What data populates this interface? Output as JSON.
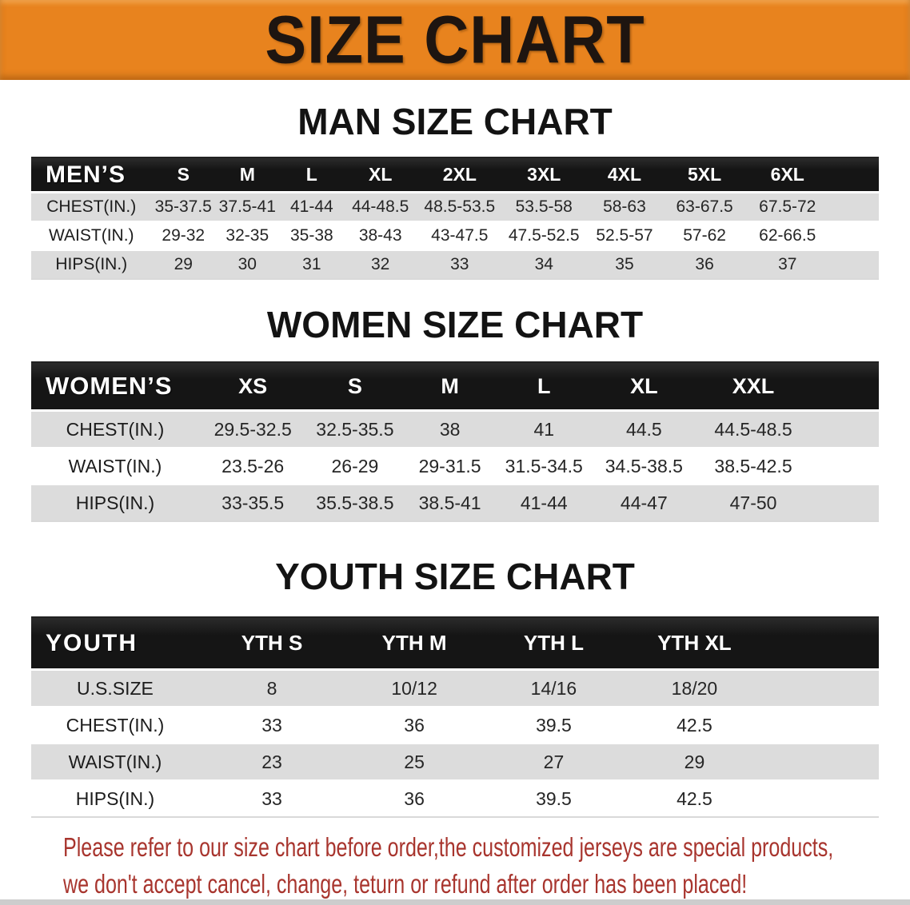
{
  "colors": {
    "banner_orange": "#e8831e",
    "band_black": "#151515",
    "row_gray": "#dcdcdc",
    "disclaimer_red": "#a8352e"
  },
  "banner": {
    "title": "SIZE CHART"
  },
  "sections": [
    {
      "heading": "MAN SIZE CHART",
      "table": {
        "label": "MEN’S",
        "columns": [
          "S",
          "M",
          "L",
          "XL",
          "2XL",
          "3XL",
          "4XL",
          "5XL",
          "6XL"
        ],
        "rows": [
          {
            "label": "CHEST(IN.)",
            "values": [
              "35-37.5",
              "37.5-41",
              "41-44",
              "44-48.5",
              "48.5-53.5",
              "53.5-58",
              "58-63",
              "63-67.5",
              "67.5-72"
            ]
          },
          {
            "label": "WAIST(IN.)",
            "values": [
              "29-32",
              "32-35",
              "35-38",
              "38-43",
              "43-47.5",
              "47.5-52.5",
              "52.5-57",
              "57-62",
              "62-66.5"
            ]
          },
          {
            "label": "HIPS(IN.)",
            "values": [
              "29",
              "30",
              "31",
              "32",
              "33",
              "34",
              "35",
              "36",
              "37"
            ]
          }
        ]
      }
    },
    {
      "heading": "WOMEN SIZE CHART",
      "table": {
        "label": "WOMEN’S",
        "columns": [
          "XS",
          "S",
          "M",
          "L",
          "XL",
          "XXL"
        ],
        "rows": [
          {
            "label": "CHEST(IN.)",
            "values": [
              "29.5-32.5",
              "32.5-35.5",
              "38",
              "41",
              "44.5",
              "44.5-48.5"
            ]
          },
          {
            "label": "WAIST(IN.)",
            "values": [
              "23.5-26",
              "26-29",
              "29-31.5",
              "31.5-34.5",
              "34.5-38.5",
              "38.5-42.5"
            ]
          },
          {
            "label": "HIPS(IN.)",
            "values": [
              "33-35.5",
              "35.5-38.5",
              "38.5-41",
              "41-44",
              "44-47",
              "47-50"
            ]
          }
        ]
      }
    },
    {
      "heading": "YOUTH SIZE CHART",
      "table": {
        "label": "YOUTH",
        "columns": [
          "YTH S",
          "YTH M",
          "YTH L",
          "YTH XL"
        ],
        "rows": [
          {
            "label": "U.S.SIZE",
            "values": [
              "8",
              "10/12",
              "14/16",
              "18/20"
            ]
          },
          {
            "label": "CHEST(IN.)",
            "values": [
              "33",
              "36",
              "39.5",
              "42.5"
            ]
          },
          {
            "label": "WAIST(IN.)",
            "values": [
              "23",
              "25",
              "27",
              "29"
            ]
          },
          {
            "label": "HIPS(IN.)",
            "values": [
              "33",
              "36",
              "39.5",
              "42.5"
            ]
          }
        ]
      }
    }
  ],
  "disclaimer": {
    "line1": "Please refer to our size chart before order,the customized jerseys are special products,",
    "line2": "we don't accept cancel, change, teturn or refund after order has been placed!"
  }
}
